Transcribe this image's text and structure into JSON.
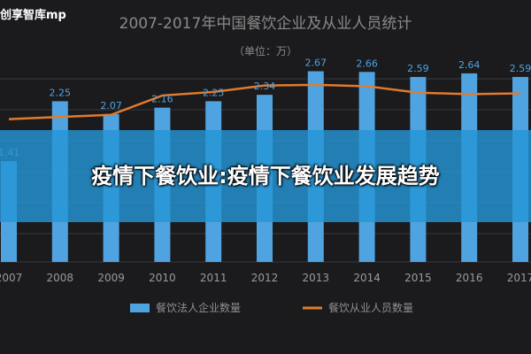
{
  "watermark": "创享智库mp",
  "banner": {
    "text": "疫情下餐饮业:疫情下餐饮业发展趋势"
  },
  "chart_data": {
    "type": "bar",
    "title": "2007-2017年中国餐饮企业及从业人员统计",
    "subtitle": "（单位：万）",
    "categories": [
      "2007",
      "2008",
      "2009",
      "2010",
      "2011",
      "2012",
      "2013",
      "2014",
      "2015",
      "2016",
      "2017"
    ],
    "series": [
      {
        "name": "餐饮法人企业数量",
        "type": "bar",
        "color": "#4fa3e0",
        "values": [
          1.41,
          2.25,
          2.07,
          2.16,
          2.25,
          2.34,
          2.67,
          2.66,
          2.59,
          2.64,
          2.59
        ],
        "labels": [
          "1.41",
          "2.25",
          "2.07",
          "2.16",
          "2.25",
          "2.34",
          "2.67",
          "2.66",
          "2.59",
          "2.64",
          "2.59"
        ]
      },
      {
        "name": "餐饮从业人员数量",
        "type": "line",
        "color": "#e07b2e",
        "values": [
          2.0,
          2.03,
          2.06,
          2.33,
          2.38,
          2.47,
          2.48,
          2.46,
          2.37,
          2.35,
          2.36
        ]
      }
    ],
    "ylim": [
      0,
      2.8
    ],
    "grid": true,
    "legend": "bottom"
  }
}
